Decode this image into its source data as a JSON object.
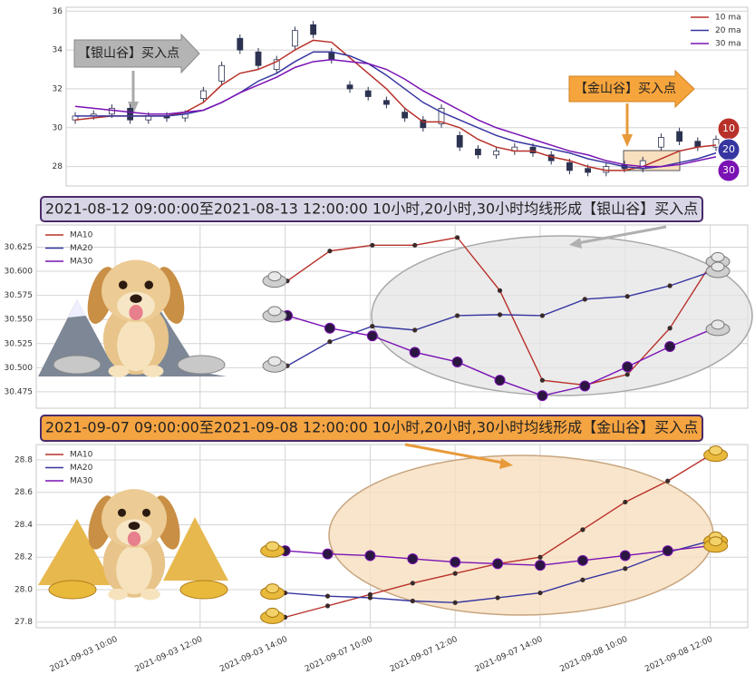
{
  "chart_data": [
    {
      "type": "candlestick",
      "open": [
        30.4,
        30.6,
        30.7,
        31.0,
        30.4,
        30.6,
        30.5,
        31.5,
        32.4,
        34.6,
        33.9,
        33.0,
        34.2,
        35.3,
        33.9,
        32.2,
        31.9,
        31.4,
        30.8,
        30.4,
        30.2,
        29.6,
        28.9,
        28.6,
        28.8,
        29.0,
        28.6,
        28.2,
        27.9,
        27.7,
        28.1,
        27.9,
        29.0,
        29.8,
        29.3,
        29.0
      ],
      "close": [
        30.6,
        30.7,
        31.0,
        30.4,
        30.6,
        30.5,
        30.7,
        31.9,
        33.2,
        34.0,
        33.2,
        33.5,
        35.0,
        34.8,
        33.5,
        32.0,
        31.6,
        31.2,
        30.5,
        30.0,
        31.0,
        29.0,
        28.6,
        28.8,
        29.0,
        28.7,
        28.3,
        27.8,
        27.7,
        28.0,
        27.9,
        28.3,
        29.5,
        29.3,
        29.0,
        29.4
      ],
      "high": [
        30.8,
        30.9,
        31.2,
        31.2,
        30.8,
        30.8,
        30.9,
        32.1,
        33.4,
        34.8,
        34.1,
        33.7,
        35.2,
        35.5,
        34.1,
        32.4,
        32.1,
        31.6,
        31.0,
        30.6,
        31.2,
        29.8,
        29.1,
        29.0,
        29.2,
        29.2,
        28.8,
        28.4,
        28.1,
        28.2,
        28.3,
        28.5,
        29.7,
        30.0,
        29.5,
        29.6
      ],
      "low": [
        30.2,
        30.4,
        30.5,
        30.2,
        30.2,
        30.3,
        30.3,
        31.3,
        32.2,
        33.8,
        33.0,
        32.8,
        34.0,
        34.6,
        33.3,
        31.8,
        31.4,
        31.0,
        30.3,
        29.8,
        30.0,
        28.8,
        28.4,
        28.4,
        28.6,
        28.5,
        28.1,
        27.6,
        27.5,
        27.5,
        27.7,
        27.7,
        28.8,
        29.1,
        28.8,
        28.8
      ],
      "series": [
        {
          "name": "10 ma",
          "badge": "10",
          "color": "#b8302a",
          "values": [
            30.4,
            30.5,
            30.6,
            30.6,
            30.6,
            30.6,
            30.8,
            31.3,
            32.2,
            32.8,
            33.0,
            33.4,
            34.0,
            34.5,
            34.4,
            33.6,
            32.8,
            32.0,
            31.0,
            30.3,
            30.3,
            30.0,
            29.4,
            29.0,
            28.8,
            28.8,
            28.5,
            28.3,
            28.0,
            27.8,
            27.8,
            28.0,
            28.4,
            28.8,
            29.0,
            29.1
          ]
        },
        {
          "name": "20 ma",
          "badge": "20",
          "color": "#3636a0",
          "values": [
            30.6,
            30.6,
            30.6,
            30.6,
            30.6,
            30.6,
            30.7,
            30.9,
            31.3,
            31.8,
            32.4,
            32.8,
            33.4,
            33.9,
            33.9,
            33.7,
            33.3,
            32.7,
            32.0,
            31.3,
            30.8,
            30.4,
            30.0,
            29.6,
            29.3,
            29.1,
            28.9,
            28.7,
            28.4,
            28.2,
            28.0,
            27.9,
            28.0,
            28.2,
            28.4,
            28.7
          ]
        },
        {
          "name": "30 ma",
          "badge": "30",
          "color": "#7a12b4",
          "values": [
            31.1,
            31.0,
            30.9,
            30.8,
            30.7,
            30.7,
            30.8,
            30.9,
            31.3,
            31.8,
            32.2,
            32.6,
            33.1,
            33.4,
            33.5,
            33.4,
            33.3,
            33.0,
            32.5,
            31.9,
            31.4,
            30.9,
            30.4,
            30.0,
            29.7,
            29.4,
            29.1,
            28.8,
            28.6,
            28.3,
            28.1,
            28.0,
            28.0,
            28.1,
            28.3,
            28.5
          ]
        }
      ],
      "annotations": [
        "【银山谷】买入点",
        "【金山谷】买入点"
      ],
      "ylim": [
        27,
        36.2
      ],
      "yticks": [
        28,
        30,
        32,
        34,
        36
      ],
      "grid": true,
      "legend": "upper right"
    },
    {
      "type": "line",
      "title": "2021-08-12 09:00:00至2021-08-13 12:00:00 10小时,20小时,30小时均线形成【银山谷】买入点",
      "series": [
        {
          "name": "MA10",
          "color": "#b8302a",
          "values": [
            30.59,
            30.621,
            30.627,
            30.627,
            30.635,
            30.58,
            30.487,
            30.482,
            30.493,
            30.541,
            30.61
          ]
        },
        {
          "name": "MA20",
          "color": "#3636a0",
          "values": [
            30.502,
            30.527,
            30.543,
            30.539,
            30.554,
            30.555,
            30.554,
            30.571,
            30.574,
            30.585,
            30.6
          ]
        },
        {
          "name": "MA30",
          "color": "#7a12b4",
          "values": [
            30.554,
            30.541,
            30.533,
            30.516,
            30.506,
            30.487,
            30.471,
            30.481,
            30.501,
            30.522,
            30.54
          ]
        }
      ],
      "ylim": [
        30.458,
        30.648
      ],
      "yticks": [
        30.475,
        {
          "value": 30.5,
          "label": "30.500"
        },
        30.525,
        {
          "value": 30.55,
          "label": "30.550"
        },
        30.575,
        {
          "value": 30.6,
          "label": "30.600"
        },
        30.625
      ],
      "grid": true,
      "legend": "upper left"
    },
    {
      "type": "line",
      "title": "2021-09-07 09:00:00至2021-09-08 12:00:00 10小时,20小时,30小时均线形成【金山谷】买入点",
      "categories": [
        "2021-09-03 10:00",
        null,
        "2021-09-03 12:00",
        null,
        "2021-09-03 14:00",
        null,
        "2021-09-07 10:00",
        null,
        "2021-09-07 12:00",
        null,
        "2021-09-07 14:00",
        null,
        "2021-09-08 10:00",
        null,
        "2021-09-08 12:00"
      ],
      "series": [
        {
          "name": "MA10",
          "color": "#b8302a",
          "values": [
            null,
            null,
            null,
            null,
            27.83,
            27.9,
            27.97,
            28.04,
            28.1,
            28.16,
            28.2,
            28.37,
            28.54,
            28.67,
            28.83
          ]
        },
        {
          "name": "MA20",
          "color": "#3636a0",
          "values": [
            null,
            null,
            null,
            null,
            27.98,
            27.96,
            27.95,
            27.93,
            27.92,
            27.95,
            27.98,
            28.06,
            28.13,
            28.23,
            28.3
          ]
        },
        {
          "name": "MA30",
          "color": "#7a12b4",
          "values": [
            null,
            null,
            null,
            null,
            28.24,
            28.22,
            28.21,
            28.19,
            28.17,
            28.16,
            28.15,
            28.18,
            28.21,
            28.24,
            28.27
          ]
        }
      ],
      "ylim": [
        27.765,
        28.895
      ],
      "yticks": [
        27.8,
        {
          "value": 28.0,
          "label": "28.0"
        },
        28.2,
        28.4,
        28.6,
        28.8
      ],
      "grid": true,
      "legend": "upper left"
    }
  ]
}
